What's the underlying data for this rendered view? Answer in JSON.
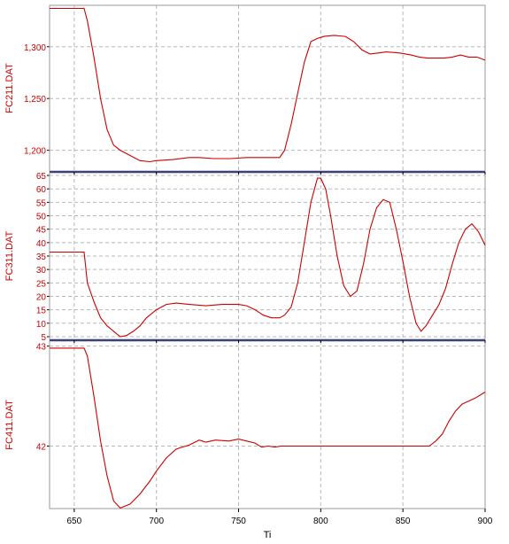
{
  "chart_data": [
    {
      "type": "line",
      "ylabel": "FC211.DAT",
      "ylim": [
        1180,
        1340
      ],
      "yticks": [
        1200,
        1250,
        1300
      ],
      "ytick_labels": [
        "1,200",
        "1,250",
        "1,300"
      ],
      "xlim": [
        635,
        900
      ],
      "grid": true,
      "series": [
        {
          "color": "#cc0000",
          "x": [
            635,
            656,
            658,
            662,
            666,
            670,
            674,
            678,
            684,
            690,
            696,
            700,
            710,
            720,
            726,
            735,
            745,
            755,
            765,
            775,
            778,
            782,
            786,
            790,
            794,
            798,
            802,
            808,
            815,
            820,
            825,
            830,
            835,
            840,
            848,
            855,
            860,
            865,
            870,
            875,
            880,
            885,
            890,
            895,
            900
          ],
          "y": [
            1337,
            1337,
            1325,
            1290,
            1250,
            1220,
            1205,
            1200,
            1195,
            1190,
            1189,
            1190,
            1191,
            1193,
            1193,
            1192,
            1192,
            1193,
            1193,
            1193,
            1200,
            1225,
            1255,
            1285,
            1305,
            1308,
            1310,
            1311,
            1310,
            1305,
            1297,
            1293,
            1294,
            1295,
            1294,
            1292,
            1290,
            1289,
            1289,
            1289,
            1290,
            1292,
            1290,
            1290,
            1287
          ]
        }
      ]
    },
    {
      "type": "line",
      "ylabel": "FC311.DAT",
      "ylim": [
        4,
        66
      ],
      "yticks": [
        5,
        10,
        15,
        20,
        25,
        30,
        35,
        40,
        45,
        50,
        55,
        60,
        65
      ],
      "ytick_labels": [
        "5",
        "10",
        "15",
        "20",
        "25",
        "30",
        "35",
        "40",
        "45",
        "50",
        "55",
        "60",
        "65"
      ],
      "xlim": [
        635,
        900
      ],
      "grid": true,
      "series": [
        {
          "color": "#cc0000",
          "x": [
            635,
            656,
            658,
            662,
            666,
            670,
            674,
            678,
            682,
            686,
            690,
            694,
            700,
            706,
            712,
            720,
            730,
            740,
            750,
            755,
            760,
            765,
            770,
            775,
            778,
            782,
            786,
            790,
            794,
            798,
            800,
            803,
            806,
            810,
            814,
            818,
            822,
            826,
            830,
            834,
            838,
            842,
            846,
            850,
            854,
            858,
            861,
            864,
            868,
            872,
            876,
            880,
            884,
            888,
            892,
            896,
            900
          ],
          "y": [
            36.5,
            36.5,
            25,
            18,
            12,
            9,
            7,
            5,
            5.5,
            7,
            9,
            12,
            15,
            17,
            17.5,
            17,
            16.5,
            17,
            17,
            16.5,
            15,
            13,
            12,
            12,
            13,
            16,
            25,
            40,
            55,
            64,
            64,
            60,
            50,
            35,
            24,
            20,
            22,
            32,
            45,
            53,
            56,
            55,
            45,
            33,
            20,
            10,
            7,
            9,
            13,
            17,
            23,
            32,
            40,
            45,
            47,
            44,
            39
          ]
        }
      ]
    },
    {
      "type": "line",
      "ylabel": "FC411.DAT",
      "ylim": [
        41.375,
        43.05
      ],
      "yticks": [
        42,
        43
      ],
      "ytick_labels": [
        "42",
        "43"
      ],
      "xlim": [
        635,
        900
      ],
      "xticks": [
        650,
        700,
        750,
        800,
        850,
        900
      ],
      "xtick_labels": [
        "650",
        "700",
        "750",
        "800",
        "850",
        "900"
      ],
      "xlabel": "Ti",
      "grid": true,
      "series": [
        {
          "color": "#cc0000",
          "x": [
            635,
            656,
            658,
            662,
            666,
            670,
            674,
            678,
            684,
            690,
            696,
            700,
            706,
            712,
            720,
            726,
            730,
            736,
            744,
            750,
            755,
            760,
            764,
            768,
            772,
            776,
            780,
            790,
            800,
            810,
            820,
            830,
            840,
            850,
            860,
            866,
            870,
            874,
            878,
            882,
            886,
            890,
            894,
            900
          ],
          "y": [
            42.98,
            42.98,
            42.9,
            42.5,
            42.05,
            41.7,
            41.45,
            41.38,
            41.42,
            41.52,
            41.65,
            41.75,
            41.88,
            41.97,
            42.01,
            42.06,
            42.04,
            42.06,
            42.05,
            42.07,
            42.05,
            42.03,
            41.99,
            42.0,
            41.99,
            42.0,
            42.0,
            42.0,
            42.0,
            42.0,
            42.0,
            42.0,
            42.0,
            42.0,
            42.0,
            42.0,
            42.05,
            42.12,
            42.25,
            42.35,
            42.42,
            42.45,
            42.48,
            42.54
          ]
        }
      ]
    }
  ]
}
